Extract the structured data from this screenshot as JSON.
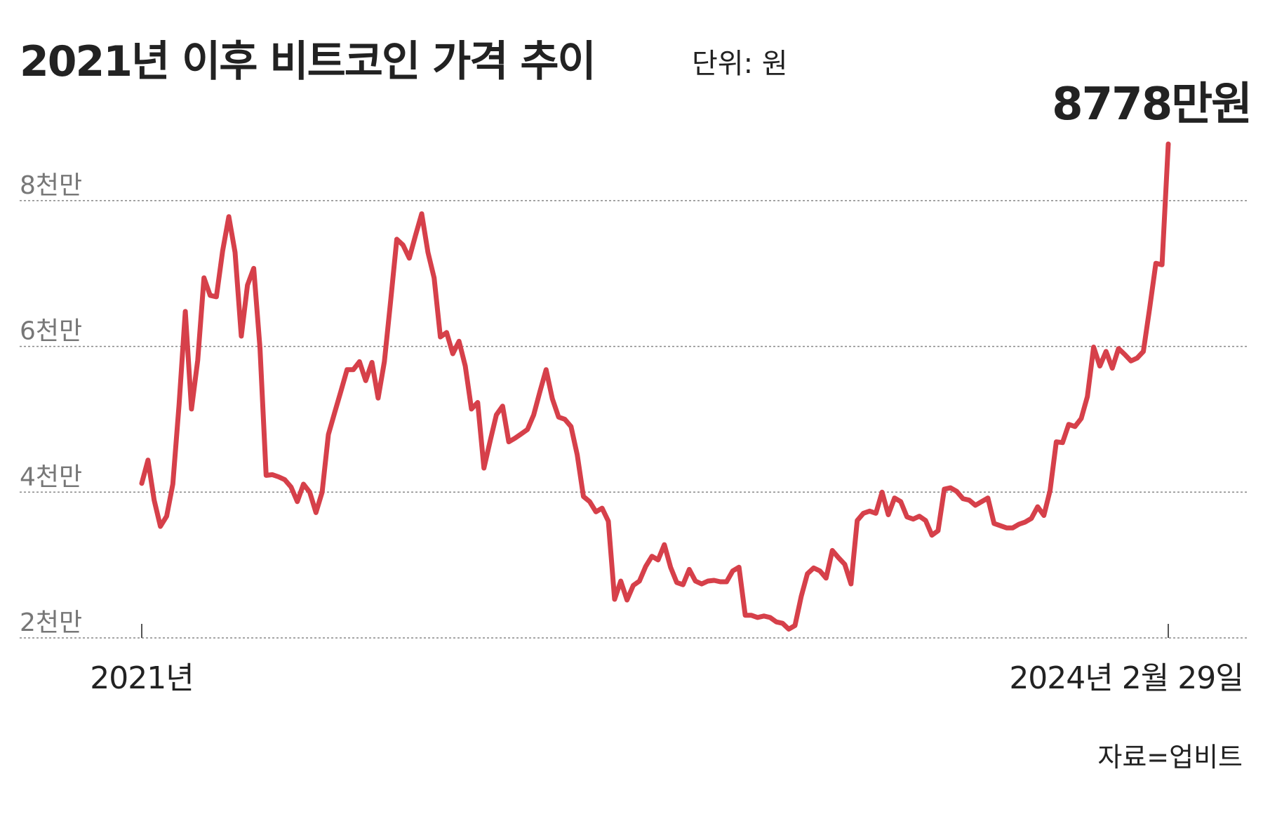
{
  "chart_data": {
    "type": "line",
    "title": "2021년 이후 비트코인 가격 추이",
    "subtitle": "단위: 원",
    "source": "자료=업비트",
    "annotation": "8778만원",
    "categories": [
      "2021년",
      null,
      null,
      null,
      null,
      null,
      null,
      null,
      null,
      null,
      null,
      null,
      null,
      null,
      null,
      null,
      null,
      null,
      null,
      null,
      null,
      null,
      null,
      null,
      null,
      null,
      null,
      null,
      null,
      null,
      null,
      null,
      null,
      null,
      null,
      null,
      null,
      null,
      null,
      null,
      null,
      null,
      null,
      null,
      null,
      null,
      null,
      null,
      null,
      null,
      null,
      null,
      null,
      null,
      null,
      null,
      null,
      null,
      null,
      null,
      null,
      null,
      null,
      null,
      null,
      null,
      null,
      null,
      null,
      null,
      null,
      null,
      null,
      null,
      null,
      null,
      null,
      null,
      null,
      null,
      null,
      null,
      null,
      null,
      null,
      null,
      null,
      null,
      null,
      null,
      null,
      null,
      null,
      null,
      null,
      null,
      null,
      null,
      null,
      null,
      null,
      null,
      null,
      null,
      null,
      null,
      null,
      null,
      null,
      null,
      null,
      null,
      null,
      null,
      null,
      null,
      null,
      null,
      null,
      null,
      null,
      null,
      null,
      null,
      null,
      null,
      null,
      null,
      null,
      null,
      null,
      null,
      null,
      null,
      null,
      null,
      null,
      null,
      null,
      null,
      null,
      null,
      null,
      null,
      null,
      null,
      null,
      null,
      null,
      null,
      null,
      null,
      null,
      null,
      null,
      null,
      null,
      null,
      null,
      null,
      null,
      null,
      null,
      null,
      null,
      "2024년 2월 29일"
    ],
    "series": [
      {
        "name": "비트코인 가격",
        "color": "#d6404a",
        "values": [
          41200000,
          44400000,
          38900000,
          35300000,
          36700000,
          41100000,
          52000000,
          64800000,
          51400000,
          58100000,
          69400000,
          67000000,
          66800000,
          73100000,
          77800000,
          72900000,
          61400000,
          68400000,
          70700000,
          59800000,
          42300000,
          42400000,
          42100000,
          41700000,
          40700000,
          38700000,
          41100000,
          40000000,
          37200000,
          40000000,
          47900000,
          50900000,
          53800000,
          56800000,
          56800000,
          57900000,
          55300000,
          57800000,
          52900000,
          57900000,
          66200000,
          74700000,
          73900000,
          72100000,
          75200000,
          78200000,
          72900000,
          69400000,
          61300000,
          61900000,
          59000000,
          60700000,
          57300000,
          51400000,
          52300000,
          43300000,
          47000000,
          50600000,
          51800000,
          46900000,
          47400000,
          48000000,
          48600000,
          50600000,
          53800000,
          56800000,
          52800000,
          50300000,
          50000000,
          49000000,
          45100000,
          39400000,
          38700000,
          37300000,
          37800000,
          36000000,
          25300000,
          27800000,
          25200000,
          27200000,
          27800000,
          29800000,
          31200000,
          30700000,
          32800000,
          29700000,
          27600000,
          27300000,
          29400000,
          27800000,
          27400000,
          27800000,
          27900000,
          27700000,
          27700000,
          29200000,
          29700000,
          23100000,
          23100000,
          22800000,
          23000000,
          22800000,
          22200000,
          22000000,
          21200000,
          21700000,
          25700000,
          28800000,
          29600000,
          29200000,
          28200000,
          32000000,
          31000000,
          30100000,
          27400000,
          36100000,
          37100000,
          37400000,
          37100000,
          40000000,
          36900000,
          39200000,
          38700000,
          36600000,
          36300000,
          36700000,
          36100000,
          34100000,
          34700000,
          40400000,
          40600000,
          40100000,
          39100000,
          38900000,
          38200000,
          38700000,
          39200000,
          35700000,
          35400000,
          35100000,
          35100000,
          35600000,
          35900000,
          36400000,
          38000000,
          36800000,
          40200000,
          46900000,
          46800000,
          49300000,
          49000000,
          50100000,
          53100000,
          59900000,
          57300000,
          59300000,
          57000000,
          59700000,
          58900000,
          58000000,
          58400000,
          59300000,
          65200000,
          71400000,
          71200000,
          87780000
        ]
      }
    ],
    "ylim": [
      20000000,
      90000000
    ],
    "yticks": [
      {
        "value": 20000000,
        "label": "2천만"
      },
      {
        "value": 40000000,
        "label": "4천만"
      },
      {
        "value": 60000000,
        "label": "6천만"
      },
      {
        "value": 80000000,
        "label": "8천만"
      }
    ],
    "grid": true
  }
}
